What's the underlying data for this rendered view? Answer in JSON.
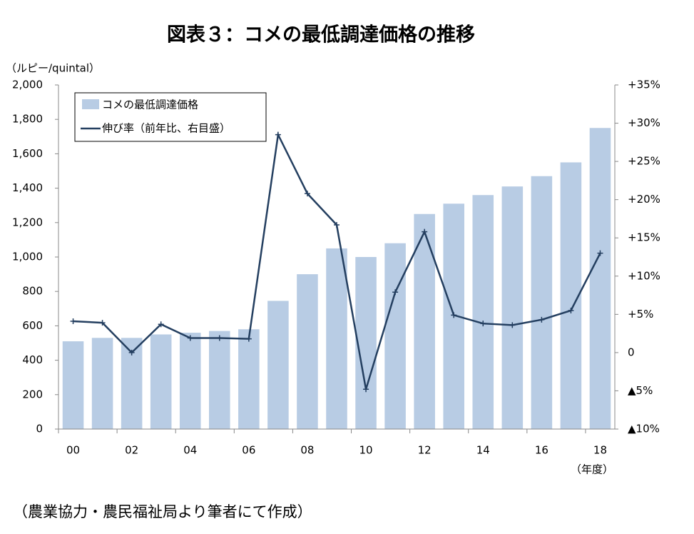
{
  "chart_data": {
    "type": "bar-line",
    "title": "図表３：コメの最低調達価格の推移",
    "source": "（農業協力・農民福祉局より筆者にて作成）",
    "y_label": "（ルピー/quintal）",
    "x_label": "（年度）",
    "categories": [
      "00",
      null,
      "02",
      null,
      "04",
      null,
      "06",
      null,
      "08",
      null,
      "10",
      null,
      "12",
      null,
      "14",
      null,
      "16",
      null,
      "18"
    ],
    "series": [
      {
        "name": "コメの最低調達価格",
        "color": "#b8cce4",
        "type": "bar",
        "values": [
          510,
          530,
          530,
          550,
          560,
          570,
          580,
          745,
          900,
          1050,
          1000,
          1080,
          1250,
          1310,
          1360,
          1410,
          1470,
          1550,
          1750
        ]
      },
      {
        "name": "伸び率（前年比、右目盛）",
        "color": "#243f60",
        "type": "line",
        "axis": "y2",
        "values": [
          4.1,
          3.9,
          0.0,
          3.7,
          1.9,
          1.9,
          1.8,
          28.5,
          20.8,
          16.7,
          -4.8,
          7.9,
          15.8,
          4.9,
          3.8,
          3.6,
          4.3,
          5.5,
          13.0
        ]
      }
    ],
    "ylim": [
      0,
      2000
    ],
    "yticks": [
      0,
      200,
      400,
      600,
      800,
      {
        "value": 1000,
        "label": "1,000"
      },
      {
        "value": 1200,
        "label": "1,200"
      },
      {
        "value": 1400,
        "label": "1,400"
      },
      {
        "value": 1600,
        "label": "1,600"
      },
      {
        "value": 1800,
        "label": "1,800"
      },
      {
        "value": 2000,
        "label": "2,000"
      }
    ],
    "y2lim": [
      -10,
      35
    ],
    "y2ticks": [
      {
        "value": -10,
        "label": "▲10%"
      },
      {
        "value": -5,
        "label": "▲5%"
      },
      0,
      {
        "value": 5,
        "label": "+5%"
      },
      {
        "value": 10,
        "label": "+10%"
      },
      {
        "value": 15,
        "label": "+15%"
      },
      {
        "value": 20,
        "label": "+20%"
      },
      {
        "value": 25,
        "label": "+25%"
      },
      {
        "value": 30,
        "label": "+30%"
      },
      {
        "value": 35,
        "label": "+35%"
      }
    ],
    "legend": "upper left",
    "grid": false
  }
}
